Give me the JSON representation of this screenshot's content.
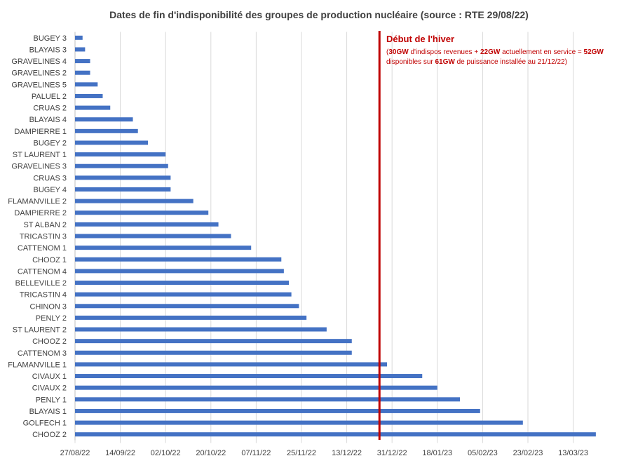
{
  "chart_data": {
    "type": "bar",
    "orientation": "horizontal",
    "title": "Dates de fin d'indisponibilité des groupes de production nucléaire (source : RTE 29/08/22)",
    "xlabel": "",
    "ylabel": "",
    "x_axis_type": "date",
    "xlim": [
      "2022-08-27",
      "2023-03-29"
    ],
    "x_tick_labels": [
      "27/08/22",
      "14/09/22",
      "02/10/22",
      "20/10/22",
      "07/11/22",
      "25/11/22",
      "13/12/22",
      "31/12/22",
      "18/01/23",
      "05/02/23",
      "23/02/23",
      "13/03/23"
    ],
    "grid": "vertical",
    "series_color": "#4472c4",
    "categories": [
      "BUGEY 3",
      "BLAYAIS 3",
      "GRAVELINES 4",
      "GRAVELINES 2",
      "GRAVELINES 5",
      "PALUEL 2",
      "CRUAS 2",
      "BLAYAIS 4",
      "DAMPIERRE 1",
      "BUGEY 2",
      "ST LAURENT 1",
      "GRAVELINES 3",
      "CRUAS 3",
      "BUGEY 4",
      "FLAMANVILLE 2",
      "DAMPIERRE 2",
      "ST ALBAN 2",
      "TRICASTIN 3",
      "CATTENOM 1",
      "CHOOZ 1",
      "CATTENOM 4",
      "BELLEVILLE 2",
      "TRICASTIN 4",
      "CHINON 3",
      "PENLY 2",
      "ST LAURENT 2",
      "CHOOZ 2",
      "CATTENOM 3",
      "FLAMANVILLE 1",
      "CIVAUX 1",
      "CIVAUX 2",
      "PENLY 1",
      "BLAYAIS 1",
      "GOLFECH 1",
      "CHOOZ 2"
    ],
    "values": [
      "2022-08-30",
      "2022-08-31",
      "2022-09-02",
      "2022-09-02",
      "2022-09-05",
      "2022-09-07",
      "2022-09-10",
      "2022-09-19",
      "2022-09-21",
      "2022-09-25",
      "2022-10-02",
      "2022-10-03",
      "2022-10-04",
      "2022-10-04",
      "2022-10-13",
      "2022-10-19",
      "2022-10-23",
      "2022-10-28",
      "2022-11-05",
      "2022-11-17",
      "2022-11-18",
      "2022-11-20",
      "2022-11-21",
      "2022-11-24",
      "2022-11-27",
      "2022-12-05",
      "2022-12-15",
      "2022-12-15",
      "2022-12-29",
      "2023-01-12",
      "2023-01-18",
      "2023-01-27",
      "2023-02-04",
      "2023-02-21",
      "2023-03-22"
    ],
    "reference_line": {
      "value": "2022-12-26",
      "color": "#c00000"
    },
    "annotation": {
      "title": "Début de l'hiver",
      "line1": [
        {
          "text": "(",
          "bold": false
        },
        {
          "text": "30GW",
          "bold": true
        },
        {
          "text": " d'indispos revenues + ",
          "bold": false
        },
        {
          "text": "22GW",
          "bold": true
        },
        {
          "text": " actuellement en service = ",
          "bold": false
        },
        {
          "text": "52GW",
          "bold": true
        }
      ],
      "line2": [
        {
          "text": "disponibles sur ",
          "bold": false
        },
        {
          "text": "61GW",
          "bold": true
        },
        {
          "text": " de puissance installée au 21/12/22)",
          "bold": false
        }
      ]
    }
  }
}
